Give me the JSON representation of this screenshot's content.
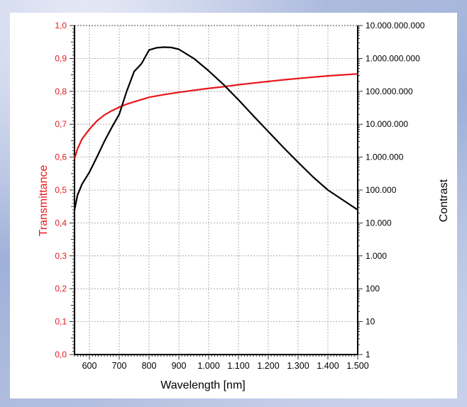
{
  "chart_data": {
    "type": "line",
    "xlabel": "Wavelength [nm]",
    "ylabel_left": "Transmittance",
    "ylabel_right": "Contrast",
    "xlim": [
      550,
      1500
    ],
    "x_ticks": [
      600,
      700,
      800,
      900,
      1000,
      1100,
      1200,
      1300,
      1400,
      1500
    ],
    "x_tick_labels": [
      "600",
      "700",
      "800",
      "900",
      "1.000",
      "1.100",
      "1.200",
      "1.300",
      "1.400",
      "1.500"
    ],
    "ylim_left": [
      0,
      1
    ],
    "y_left_ticks": [
      0,
      0.1,
      0.2,
      0.3,
      0.4,
      0.5,
      0.6,
      0.7,
      0.8,
      0.9,
      1.0
    ],
    "y_left_tick_labels": [
      "0,0",
      "0,1",
      "0,2",
      "0,3",
      "0,4",
      "0,5",
      "0,6",
      "0,7",
      "0,8",
      "0,9",
      "1,0"
    ],
    "y_right_scale": "log",
    "ylim_right": [
      1,
      10000000000
    ],
    "y_right_ticks": [
      1,
      10,
      100,
      1000,
      10000,
      100000,
      1000000,
      10000000,
      100000000,
      1000000000,
      10000000000
    ],
    "y_right_tick_labels": [
      "1",
      "10",
      "100",
      "1.000",
      "10.000",
      "100.000",
      "1.000.000",
      "10.000.000",
      "100.000.000",
      "1.000.000.000",
      "10.000.000.000"
    ],
    "grid": true,
    "series": [
      {
        "axis": "left",
        "color": "#e8161b",
        "x": [
          550,
          560,
          575,
          600,
          625,
          650,
          675,
          700,
          725,
          750,
          775,
          800,
          850,
          900,
          950,
          1000,
          1050,
          1100,
          1150,
          1200,
          1250,
          1300,
          1350,
          1400,
          1450,
          1500
        ],
        "y": [
          0.595,
          0.625,
          0.655,
          0.685,
          0.71,
          0.728,
          0.741,
          0.752,
          0.761,
          0.768,
          0.775,
          0.782,
          0.79,
          0.797,
          0.803,
          0.809,
          0.814,
          0.82,
          0.825,
          0.83,
          0.835,
          0.839,
          0.843,
          0.847,
          0.85,
          0.853
        ]
      },
      {
        "axis": "right",
        "color": "#000000",
        "x": [
          550,
          560,
          575,
          600,
          625,
          650,
          675,
          700,
          725,
          750,
          775,
          800,
          825,
          850,
          875,
          900,
          950,
          1000,
          1050,
          1100,
          1150,
          1200,
          1250,
          1300,
          1350,
          1400,
          1450,
          1500
        ],
        "y": [
          25000,
          70000,
          150000,
          350000,
          1000000,
          3000000,
          8000000,
          20000000,
          100000000,
          400000000,
          700000000,
          1800000000,
          2100000000,
          2200000000,
          2150000000,
          1900000000,
          1000000000,
          420000000,
          160000000,
          55000000,
          18000000,
          6000000,
          2000000,
          700000,
          250000,
          100000,
          50000,
          25000
        ]
      }
    ]
  }
}
